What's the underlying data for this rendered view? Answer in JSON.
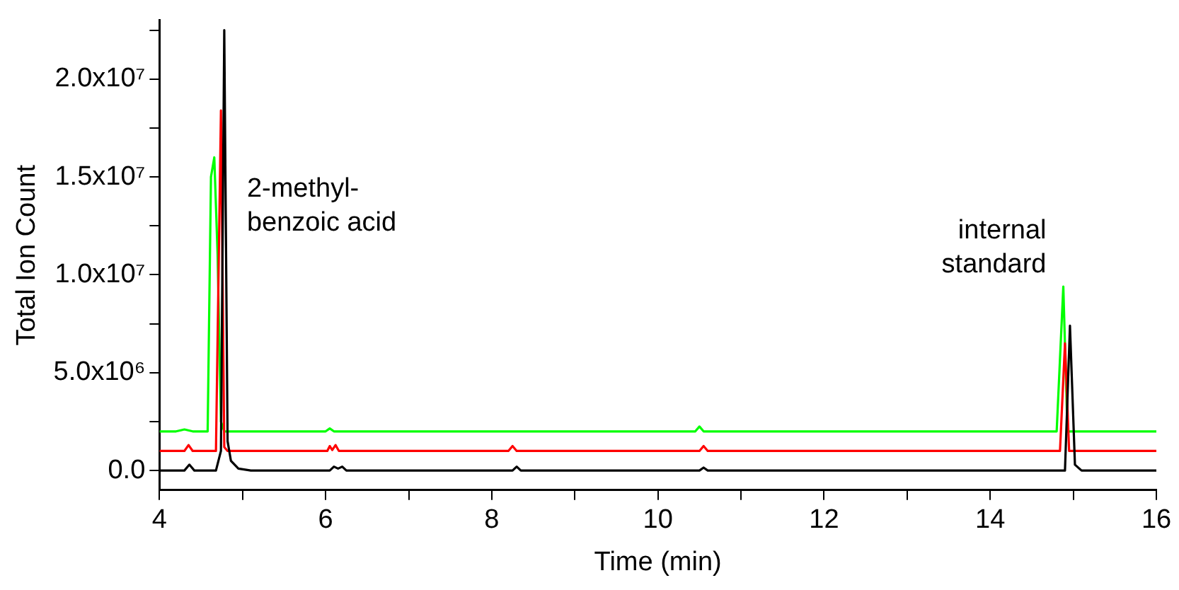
{
  "chart_data": {
    "type": "line",
    "xlabel": "Time (min)",
    "ylabel": "Total Ion Count",
    "xlim": [
      4,
      16
    ],
    "xticks": [
      4,
      {
        "value": 5,
        "label": null
      },
      6,
      {
        "value": 7,
        "label": null
      },
      8,
      {
        "value": 9,
        "label": null
      },
      10,
      {
        "value": 11,
        "label": null
      },
      12,
      {
        "value": 13,
        "label": null
      },
      14,
      {
        "value": 15,
        "label": null
      },
      16
    ],
    "ylim": [
      -1000000,
      23000000
    ],
    "yticks": [
      {
        "value": 0,
        "label": "0.0"
      },
      {
        "value": 2500000,
        "label": null
      },
      {
        "value": 5000000,
        "label": "5.0x10⁶"
      },
      {
        "value": 7500000,
        "label": null
      },
      {
        "value": 10000000,
        "label": "1.0x10⁷"
      },
      {
        "value": 12500000,
        "label": null
      },
      {
        "value": 15000000,
        "label": "1.5x10⁷"
      },
      {
        "value": 17500000,
        "label": null
      },
      {
        "value": 20000000,
        "label": "2.0x10⁷"
      },
      {
        "value": 22500000,
        "label": null
      }
    ],
    "grid": false,
    "legend": false,
    "marker": "none",
    "line_style": "solid",
    "annotations": [
      {
        "text": "2-methyl-\nbenzoic acid",
        "x": 4.78,
        "y": 14000000
      },
      {
        "text": "internal\nstandard",
        "x": 14.88,
        "y": 9400000
      }
    ],
    "series": [
      {
        "color": "#00ff00",
        "x": [
          4,
          4.2,
          4.3,
          4.4,
          4.58,
          4.62,
          4.66,
          4.7,
          4.74,
          4.78,
          6.0,
          6.05,
          6.1,
          10.45,
          10.5,
          10.55,
          14.8,
          14.88,
          14.93,
          16
        ],
        "values": [
          2000000,
          2000000,
          2100000,
          2000000,
          2000000,
          15000000,
          16000000,
          11000000,
          2500000,
          2000000,
          2000000,
          2150000,
          2000000,
          2000000,
          2250000,
          2000000,
          2000000,
          9400000,
          2000000,
          2000000
        ]
      },
      {
        "color": "#ff0000",
        "x": [
          4,
          4.3,
          4.35,
          4.4,
          4.68,
          4.74,
          4.78,
          4.82,
          6.02,
          6.05,
          6.08,
          6.12,
          6.16,
          8.2,
          8.25,
          8.3,
          10.5,
          10.55,
          10.6,
          14.84,
          14.9,
          14.95,
          16
        ],
        "values": [
          1000000,
          1000000,
          1300000,
          1000000,
          1000000,
          18400000,
          1200000,
          1000000,
          1000000,
          1250000,
          1050000,
          1300000,
          1000000,
          1000000,
          1250000,
          1000000,
          1000000,
          1250000,
          1000000,
          1000000,
          6500000,
          1000000,
          1000000
        ]
      },
      {
        "color": "#000000",
        "x": [
          4,
          4.3,
          4.36,
          4.42,
          4.68,
          4.74,
          4.78,
          4.82,
          4.86,
          4.95,
          5.1,
          6.05,
          6.1,
          6.15,
          6.2,
          6.25,
          8.25,
          8.3,
          8.35,
          10.5,
          10.55,
          10.6,
          14.9,
          14.96,
          15.02,
          15.1,
          16
        ],
        "values": [
          0,
          0,
          300000,
          0,
          0,
          1000000,
          22500000,
          1500000,
          500000,
          100000,
          0,
          0,
          200000,
          100000,
          200000,
          0,
          0,
          200000,
          0,
          0,
          150000,
          0,
          0,
          7400000,
          300000,
          0,
          0
        ]
      }
    ]
  }
}
